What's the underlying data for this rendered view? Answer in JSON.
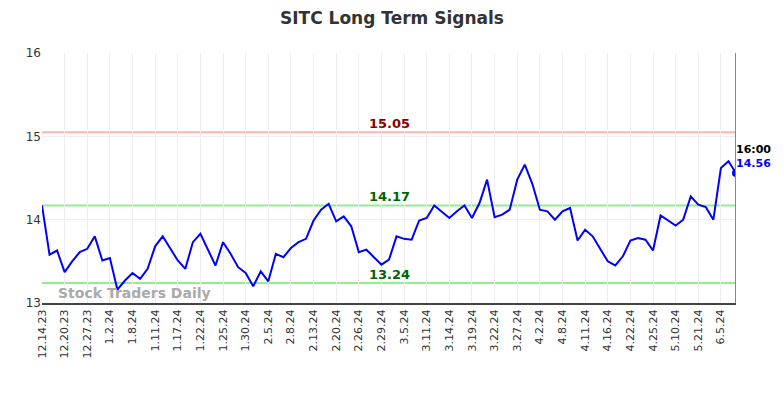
{
  "chart_data": {
    "type": "line",
    "title": "SITC Long Term Signals",
    "categories": [
      "12.14.23",
      null,
      null,
      "12.20.23",
      null,
      null,
      "12.27.23",
      null,
      null,
      "1.2.24",
      null,
      null,
      "1.8.24",
      null,
      null,
      "1.11.24",
      null,
      null,
      "1.17.24",
      null,
      null,
      "1.22.24",
      null,
      null,
      "1.25.24",
      null,
      null,
      "1.30.24",
      null,
      null,
      "2.5.24",
      null,
      null,
      "2.8.24",
      null,
      null,
      "2.13.24",
      null,
      null,
      "2.20.24",
      null,
      null,
      "2.26.24",
      null,
      null,
      "2.29.24",
      null,
      null,
      "3.5.24",
      null,
      null,
      "3.11.24",
      null,
      null,
      "3.14.24",
      null,
      null,
      "3.19.24",
      null,
      null,
      "3.22.24",
      null,
      null,
      "3.27.24",
      null,
      null,
      "4.2.24",
      null,
      null,
      "4.8.24",
      null,
      null,
      "4.11.24",
      null,
      null,
      "4.16.24",
      null,
      null,
      "4.22.24",
      null,
      null,
      "4.25.24",
      null,
      null,
      "5.10.24",
      null,
      null,
      "5.21.24",
      null,
      null,
      "6.5.24",
      null,
      null
    ],
    "values": [
      14.17,
      13.58,
      13.63,
      13.37,
      13.5,
      13.61,
      13.65,
      13.8,
      13.51,
      13.54,
      13.16,
      13.27,
      13.36,
      13.29,
      13.41,
      13.68,
      13.8,
      13.66,
      13.51,
      13.41,
      13.73,
      13.83,
      13.64,
      13.45,
      13.73,
      13.59,
      13.43,
      13.36,
      13.2,
      13.38,
      13.26,
      13.59,
      13.55,
      13.66,
      13.73,
      13.77,
      13.99,
      14.12,
      14.19,
      13.98,
      14.04,
      13.92,
      13.61,
      13.64,
      13.55,
      13.46,
      13.52,
      13.8,
      13.77,
      13.76,
      13.99,
      14.02,
      14.17,
      14.1,
      14.02,
      14.1,
      14.17,
      14.02,
      14.2,
      14.48,
      14.03,
      14.06,
      14.12,
      14.48,
      14.66,
      14.43,
      14.12,
      14.1,
      14.0,
      14.1,
      14.14,
      13.75,
      13.88,
      13.8,
      13.65,
      13.5,
      13.45,
      13.56,
      13.75,
      13.78,
      13.76,
      13.63,
      14.05,
      13.99,
      13.93,
      14.0,
      14.28,
      14.18,
      14.15,
      14.0,
      14.62,
      14.7,
      14.56
    ],
    "color": "#0000ff",
    "ylim": [
      13,
      16
    ],
    "yticks": [
      13,
      14,
      15,
      16
    ],
    "grid": true,
    "reference_lines": [
      {
        "value": 15.05,
        "label": "15.05",
        "color": "#ffb3b3",
        "label_color": "#8b0000"
      },
      {
        "value": 14.17,
        "label": "14.17",
        "color": "#90ee90",
        "label_color": "#006400"
      },
      {
        "value": 13.24,
        "label": "13.24",
        "color": "#90ee90",
        "label_color": "#006400"
      }
    ],
    "end_annotation": {
      "time": "16:00",
      "value_label": "14.56"
    },
    "watermark": "Stock Traders Daily"
  }
}
